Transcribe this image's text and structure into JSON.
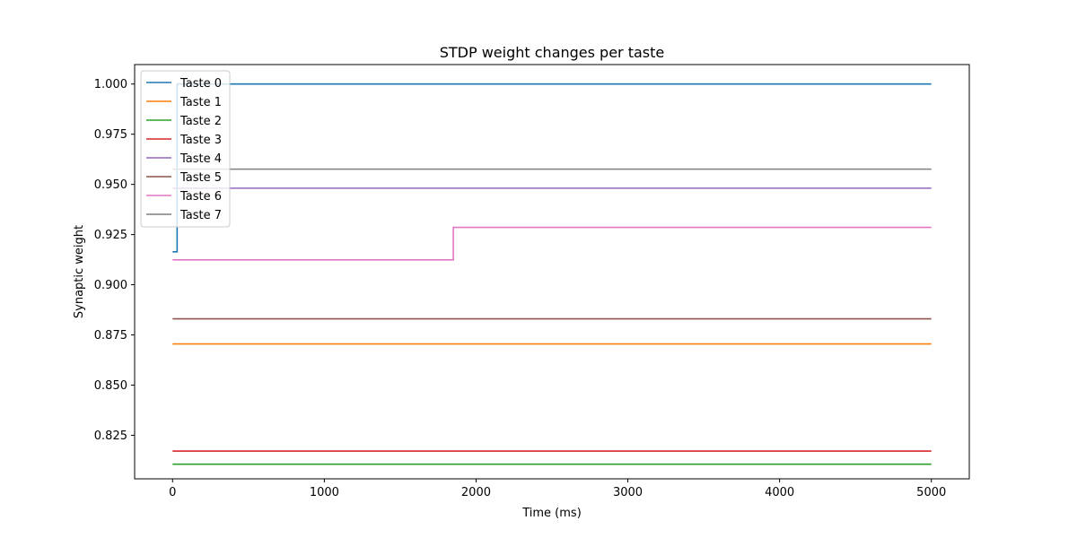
{
  "chart_data": {
    "type": "line",
    "title": "STDP weight changes per taste",
    "xlabel": "Time (ms)",
    "ylabel": "Synaptic weight",
    "xlim": [
      -250,
      5250
    ],
    "ylim": [
      0.8033,
      1.0097
    ],
    "xticks": [
      0,
      1000,
      2000,
      3000,
      4000,
      5000
    ],
    "xtick_labels": [
      "0",
      "1000",
      "2000",
      "3000",
      "4000",
      "5000"
    ],
    "yticks": [
      0.825,
      0.85,
      0.875,
      0.9,
      0.925,
      0.95,
      0.975,
      1.0
    ],
    "ytick_labels": [
      "0.825",
      "0.850",
      "0.875",
      "0.900",
      "0.925",
      "0.950",
      "0.975",
      "1.000"
    ],
    "grid": false,
    "legend_position": "top-left",
    "series": [
      {
        "name": "Taste 0",
        "color": "#1f77b4",
        "x": [
          0,
          30,
          30,
          5000
        ],
        "y": [
          0.9164,
          0.9164,
          1.0,
          1.0
        ]
      },
      {
        "name": "Taste 1",
        "color": "#ff7f0e",
        "x": [
          0,
          5000
        ],
        "y": [
          0.8705,
          0.8705
        ]
      },
      {
        "name": "Taste 2",
        "color": "#2ca02c",
        "x": [
          0,
          5000
        ],
        "y": [
          0.8106,
          0.8106
        ]
      },
      {
        "name": "Taste 3",
        "color": "#d62728",
        "x": [
          0,
          5000
        ],
        "y": [
          0.8171,
          0.8171
        ]
      },
      {
        "name": "Taste 4",
        "color": "#9467bd",
        "x": [
          0,
          5000
        ],
        "y": [
          0.9481,
          0.9481
        ]
      },
      {
        "name": "Taste 5",
        "color": "#8c564b",
        "x": [
          0,
          5000
        ],
        "y": [
          0.883,
          0.883
        ]
      },
      {
        "name": "Taste 6",
        "color": "#e377c2",
        "x": [
          0,
          1850,
          1850,
          5000
        ],
        "y": [
          0.9124,
          0.9124,
          0.9286,
          0.9286
        ]
      },
      {
        "name": "Taste 7",
        "color": "#7f7f7f",
        "x": [
          0,
          5000
        ],
        "y": [
          0.9576,
          0.9576
        ]
      }
    ]
  }
}
